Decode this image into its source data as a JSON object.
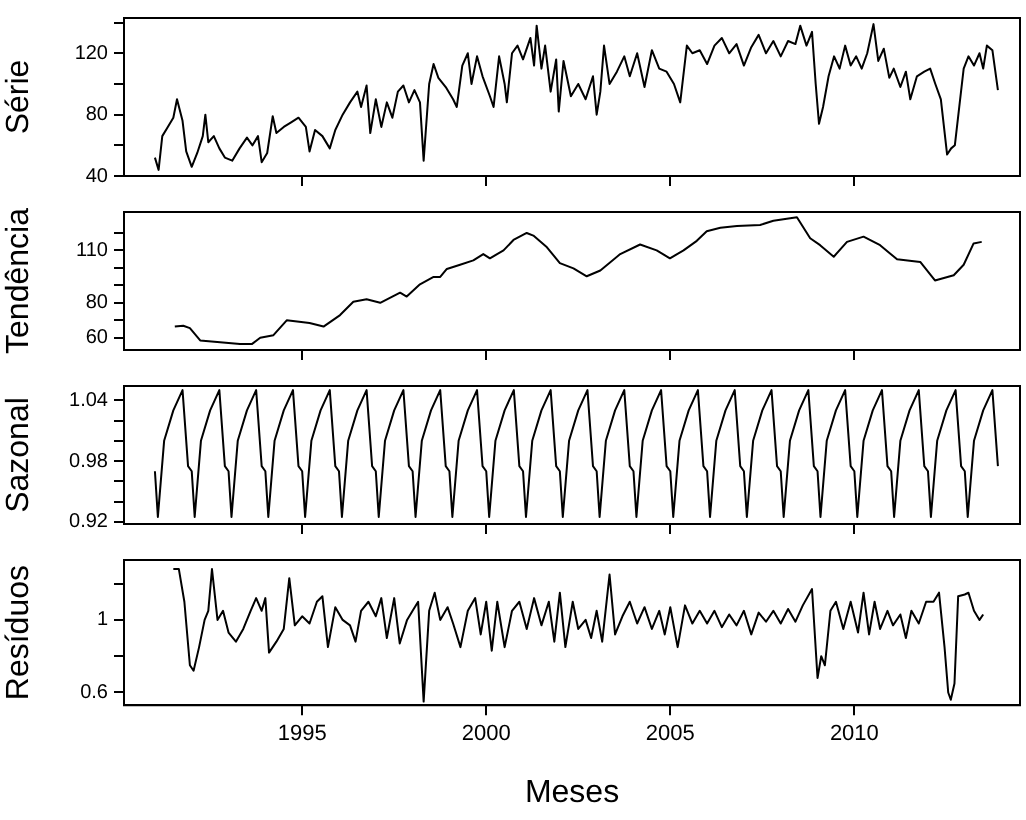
{
  "chart_data": [
    {
      "type": "line",
      "ylabel": "Série",
      "xlim": [
        1990.16,
        2014.5
      ],
      "xticks": [
        1995,
        2000,
        2005,
        2010
      ],
      "ylim": [
        40,
        143
      ],
      "yticks": [
        40,
        {
          "value": 60,
          "label": null
        },
        80,
        {
          "value": 100,
          "label": null
        },
        120,
        {
          "value": 140,
          "label": null
        }
      ],
      "tick_labels": "y",
      "series": [
        {
          "color": "#000000",
          "x": [
            1991.0,
            1991.1,
            1991.2,
            1991.35,
            1991.5,
            1991.6,
            1991.75,
            1991.85,
            1992.0,
            1992.15,
            1992.3,
            1992.37,
            1992.45,
            1992.6,
            1992.75,
            1992.9,
            1993.1,
            1993.3,
            1993.5,
            1993.65,
            1993.8,
            1993.9,
            1994.05,
            1994.2,
            1994.3,
            1994.5,
            1994.7,
            1994.9,
            1995.1,
            1995.2,
            1995.35,
            1995.55,
            1995.75,
            1995.9,
            1996.1,
            1996.3,
            1996.5,
            1996.6,
            1996.75,
            1996.85,
            1997.0,
            1997.15,
            1997.3,
            1997.45,
            1997.6,
            1997.75,
            1997.9,
            1998.05,
            1998.2,
            1998.3,
            1998.45,
            1998.57,
            1998.7,
            1998.9,
            1999.1,
            1999.2,
            1999.35,
            1999.5,
            1999.6,
            1999.75,
            1999.9,
            2000.1,
            2000.2,
            2000.35,
            2000.5,
            2000.56,
            2000.7,
            2000.85,
            2001.0,
            2001.2,
            2001.3,
            2001.37,
            2001.5,
            2001.6,
            2001.75,
            2001.9,
            2001.97,
            2002.1,
            2002.3,
            2002.5,
            2002.7,
            2002.9,
            2003.0,
            2003.1,
            2003.2,
            2003.35,
            2003.55,
            2003.75,
            2003.9,
            2004.1,
            2004.3,
            2004.5,
            2004.7,
            2004.9,
            2005.1,
            2005.27,
            2005.45,
            2005.6,
            2005.8,
            2006.0,
            2006.2,
            2006.4,
            2006.6,
            2006.8,
            2007.0,
            2007.2,
            2007.4,
            2007.6,
            2007.8,
            2008.0,
            2008.2,
            2008.4,
            2008.53,
            2008.7,
            2008.85,
            2008.95,
            2009.04,
            2009.15,
            2009.3,
            2009.45,
            2009.6,
            2009.75,
            2009.9,
            2010.05,
            2010.2,
            2010.35,
            2010.52,
            2010.65,
            2010.8,
            2010.95,
            2011.07,
            2011.25,
            2011.4,
            2011.52,
            2011.7,
            2011.9,
            2012.06,
            2012.2,
            2012.35,
            2012.52,
            2012.63,
            2012.73,
            2012.85,
            2012.97,
            2013.1,
            2013.25,
            2013.4,
            2013.5,
            2013.6,
            2013.75,
            2013.9
          ],
          "values": [
            52,
            44,
            66,
            72,
            78,
            90,
            76,
            56,
            46,
            55,
            66,
            80,
            62,
            66,
            58,
            52,
            50,
            58,
            65,
            60,
            66,
            49,
            55,
            79,
            68,
            72,
            75,
            78,
            72,
            56,
            70,
            66,
            58,
            70,
            80,
            88,
            95,
            85,
            99,
            68,
            90,
            72,
            88,
            78,
            95,
            99,
            88,
            96,
            88,
            50,
            100,
            113,
            104,
            98,
            90,
            85,
            112,
            120,
            100,
            118,
            105,
            92,
            85,
            118,
            100,
            88,
            120,
            125,
            116,
            130,
            112,
            138,
            110,
            125,
            95,
            116,
            82,
            115,
            92,
            100,
            90,
            105,
            80,
            95,
            125,
            100,
            108,
            118,
            105,
            120,
            98,
            122,
            110,
            108,
            100,
            88,
            125,
            120,
            122,
            113,
            125,
            130,
            120,
            126,
            112,
            124,
            132,
            120,
            128,
            118,
            128,
            126,
            138,
            125,
            134,
            100,
            74,
            85,
            105,
            118,
            110,
            125,
            112,
            118,
            110,
            120,
            139,
            115,
            123,
            104,
            110,
            98,
            108,
            90,
            105,
            108,
            110,
            100,
            90,
            54,
            58,
            60,
            85,
            110,
            118,
            112,
            120,
            110,
            125,
            122,
            96
          ]
        }
      ]
    },
    {
      "type": "line",
      "ylabel": "Tendência",
      "xlim": [
        1990.16,
        2014.5
      ],
      "xticks": [
        1995,
        2000,
        2005,
        2010
      ],
      "ylim": [
        53,
        132
      ],
      "yticks": [
        60,
        {
          "value": 70,
          "label": null
        },
        80,
        {
          "value": 90,
          "label": null
        },
        {
          "value": 100,
          "label": null
        },
        110,
        {
          "value": 120,
          "label": null
        }
      ],
      "tick_labels": "y",
      "series": [
        {
          "color": "#000000",
          "x": [
            1991.54,
            1991.77,
            1991.95,
            1992.23,
            1992.77,
            1993.31,
            1993.64,
            1993.86,
            1994.22,
            1994.58,
            1995.2,
            1995.58,
            1996.03,
            1996.39,
            1996.75,
            1997.12,
            1997.66,
            1997.84,
            1998.2,
            1998.57,
            1998.75,
            1998.93,
            1999.29,
            1999.65,
            1999.92,
            2000.1,
            2000.47,
            2000.74,
            2001.1,
            2001.28,
            2001.65,
            2002.0,
            2002.37,
            2002.73,
            2003.1,
            2003.64,
            2004.18,
            2004.63,
            2004.99,
            2005.36,
            2005.72,
            2005.99,
            2006.36,
            2006.81,
            2007.44,
            2007.8,
            2008.44,
            2008.8,
            2009.07,
            2009.44,
            2009.8,
            2010.25,
            2010.7,
            2011.16,
            2011.79,
            2012.19,
            2012.7,
            2012.97,
            2013.24,
            2013.46
          ],
          "values": [
            66.4,
            66.9,
            65.5,
            58.5,
            57.4,
            56.5,
            56.5,
            60,
            61.5,
            70,
            68.5,
            66.4,
            73,
            80.6,
            82,
            80,
            85.8,
            83.6,
            90.6,
            94.8,
            94.8,
            99.4,
            101.8,
            104.3,
            107.9,
            105.5,
            110,
            116,
            120,
            118.5,
            111.8,
            102.7,
            99.7,
            95.2,
            98.5,
            107.9,
            113.4,
            110,
            105.5,
            110,
            115.5,
            121,
            123,
            124,
            124.6,
            127,
            129,
            117,
            113,
            106.4,
            114.9,
            117.9,
            113,
            104.9,
            103.4,
            92.8,
            95.8,
            101.8,
            114,
            114.9
          ]
        }
      ]
    },
    {
      "type": "line",
      "ylabel": "Sazonal",
      "xlim": [
        1990.16,
        2014.5
      ],
      "xticks": [
        1995,
        2000,
        2005,
        2010
      ],
      "ylim": [
        0.918,
        1.054
      ],
      "yticks": [
        0.92,
        {
          "value": 0.94,
          "label": null
        },
        {
          "value": 0.96,
          "label": null
        },
        0.98,
        {
          "value": 1.0,
          "label": null
        },
        {
          "value": 1.02,
          "label": null
        },
        1.04
      ],
      "tick_labels": "y",
      "series": [
        {
          "color": "#000000",
          "x": [
            1991.0,
            1991.08,
            1991.25,
            1991.5,
            1991.75,
            1991.9,
            1992.0,
            1992.08,
            1992.25,
            1992.5,
            1992.75,
            1992.9,
            1993.0,
            1993.08,
            1993.25,
            1993.5,
            1993.75,
            1993.9,
            1994.0,
            1994.08,
            1994.25,
            1994.5,
            1994.75,
            1994.9,
            1995.0,
            1995.08,
            1995.25,
            1995.5,
            1995.75,
            1995.9,
            1996.0,
            1996.08,
            1996.25,
            1996.5,
            1996.75,
            1996.9,
            1997.0,
            1997.08,
            1997.25,
            1997.5,
            1997.75,
            1997.9,
            1998.0,
            1998.08,
            1998.25,
            1998.5,
            1998.75,
            1998.9,
            1999.0,
            1999.08,
            1999.25,
            1999.5,
            1999.75,
            1999.9,
            2000.0,
            2000.08,
            2000.25,
            2000.5,
            2000.75,
            2000.9,
            2001.0,
            2001.08,
            2001.25,
            2001.5,
            2001.75,
            2001.9,
            2002.0,
            2002.08,
            2002.25,
            2002.5,
            2002.75,
            2002.9,
            2003.0,
            2003.08,
            2003.25,
            2003.5,
            2003.75,
            2003.9,
            2004.0,
            2004.08,
            2004.25,
            2004.5,
            2004.75,
            2004.9,
            2005.0,
            2005.08,
            2005.25,
            2005.5,
            2005.75,
            2005.9,
            2006.0,
            2006.08,
            2006.25,
            2006.5,
            2006.75,
            2006.9,
            2007.0,
            2007.08,
            2007.25,
            2007.5,
            2007.75,
            2007.9,
            2008.0,
            2008.08,
            2008.25,
            2008.5,
            2008.75,
            2008.9,
            2009.0,
            2009.08,
            2009.25,
            2009.5,
            2009.75,
            2009.9,
            2010.0,
            2010.08,
            2010.25,
            2010.5,
            2010.75,
            2010.9,
            2011.0,
            2011.08,
            2011.25,
            2011.5,
            2011.75,
            2011.9,
            2012.0,
            2012.08,
            2012.25,
            2012.5,
            2012.75,
            2012.9,
            2013.0,
            2013.08,
            2013.25,
            2013.5,
            2013.75,
            2013.9
          ],
          "values": [
            0.97,
            0.925,
            1.0,
            1.03,
            1.05,
            0.975,
            0.97,
            0.925,
            1.0,
            1.03,
            1.05,
            0.975,
            0.97,
            0.925,
            1.0,
            1.03,
            1.05,
            0.975,
            0.97,
            0.925,
            1.0,
            1.03,
            1.05,
            0.975,
            0.97,
            0.925,
            1.0,
            1.03,
            1.05,
            0.975,
            0.97,
            0.925,
            1.0,
            1.03,
            1.05,
            0.975,
            0.97,
            0.925,
            1.0,
            1.03,
            1.05,
            0.975,
            0.97,
            0.925,
            1.0,
            1.03,
            1.05,
            0.975,
            0.97,
            0.925,
            1.0,
            1.03,
            1.05,
            0.975,
            0.97,
            0.925,
            1.0,
            1.03,
            1.05,
            0.975,
            0.97,
            0.925,
            1.0,
            1.03,
            1.05,
            0.975,
            0.97,
            0.925,
            1.0,
            1.03,
            1.05,
            0.975,
            0.97,
            0.925,
            1.0,
            1.03,
            1.05,
            0.975,
            0.97,
            0.925,
            1.0,
            1.03,
            1.05,
            0.975,
            0.97,
            0.925,
            1.0,
            1.03,
            1.05,
            0.975,
            0.97,
            0.925,
            1.0,
            1.03,
            1.05,
            0.975,
            0.97,
            0.925,
            1.0,
            1.03,
            1.05,
            0.975,
            0.97,
            0.925,
            1.0,
            1.03,
            1.05,
            0.975,
            0.97,
            0.925,
            1.0,
            1.03,
            1.05,
            0.975,
            0.97,
            0.925,
            1.0,
            1.03,
            1.05,
            0.975,
            0.97,
            0.925,
            1.0,
            1.03,
            1.05,
            0.975,
            0.97,
            0.925,
            1.0,
            1.03,
            1.05,
            0.975,
            0.97,
            0.925,
            1.0,
            1.03,
            1.05,
            0.975
          ]
        }
      ]
    },
    {
      "type": "line",
      "ylabel": "Resíduos",
      "xlabel": "Meses",
      "xlim": [
        1990.16,
        2014.5
      ],
      "xticks": [
        1995,
        2000,
        2005,
        2010
      ],
      "ylim": [
        0.53,
        1.33
      ],
      "yticks": [
        0.6,
        {
          "value": 0.8,
          "label": null
        },
        1.0,
        {
          "value": 1.2,
          "label": null
        }
      ],
      "series": [
        {
          "color": "#000000",
          "x": [
            1991.5,
            1991.65,
            1991.8,
            1991.95,
            1992.05,
            1992.2,
            1992.35,
            1992.45,
            1992.55,
            1992.7,
            1992.85,
            1993.0,
            1993.2,
            1993.4,
            1993.6,
            1993.75,
            1993.9,
            1994.0,
            1994.1,
            1994.3,
            1994.5,
            1994.65,
            1994.8,
            1995.0,
            1995.2,
            1995.4,
            1995.55,
            1995.7,
            1995.9,
            1996.1,
            1996.3,
            1996.45,
            1996.6,
            1996.8,
            1997.0,
            1997.15,
            1997.3,
            1997.5,
            1997.65,
            1997.85,
            1998.0,
            1998.15,
            1998.3,
            1998.45,
            1998.6,
            1998.75,
            1998.95,
            1999.1,
            1999.3,
            1999.5,
            1999.7,
            1999.85,
            2000.0,
            2000.15,
            2000.3,
            2000.5,
            2000.7,
            2000.9,
            2001.1,
            2001.3,
            2001.5,
            2001.7,
            2001.85,
            2002.0,
            2002.15,
            2002.35,
            2002.5,
            2002.7,
            2002.85,
            2003.0,
            2003.15,
            2003.35,
            2003.5,
            2003.7,
            2003.9,
            2004.1,
            2004.3,
            2004.5,
            2004.7,
            2004.85,
            2005.0,
            2005.2,
            2005.4,
            2005.6,
            2005.8,
            2006.0,
            2006.2,
            2006.4,
            2006.6,
            2006.8,
            2007.0,
            2007.2,
            2007.4,
            2007.6,
            2007.8,
            2008.0,
            2008.2,
            2008.4,
            2008.6,
            2008.85,
            2009.0,
            2009.1,
            2009.2,
            2009.35,
            2009.5,
            2009.7,
            2009.9,
            2010.1,
            2010.25,
            2010.4,
            2010.55,
            2010.7,
            2010.9,
            2011.05,
            2011.25,
            2011.4,
            2011.55,
            2011.75,
            2011.95,
            2012.15,
            2012.3,
            2012.45,
            2012.55,
            2012.62,
            2012.72,
            2012.82,
            2013.0,
            2013.1,
            2013.25,
            2013.4,
            2013.5
          ],
          "values": [
            1.28,
            1.28,
            1.1,
            0.75,
            0.72,
            0.85,
            1.0,
            1.05,
            1.28,
            1.0,
            1.05,
            0.93,
            0.88,
            0.95,
            1.05,
            1.12,
            1.05,
            1.12,
            0.82,
            0.88,
            0.95,
            1.23,
            0.97,
            1.02,
            0.98,
            1.1,
            1.13,
            0.85,
            1.07,
            1.0,
            0.97,
            0.88,
            1.05,
            1.1,
            1.02,
            1.12,
            0.9,
            1.12,
            0.87,
            1.0,
            1.05,
            1.1,
            0.55,
            1.05,
            1.15,
            1.0,
            1.07,
            0.98,
            0.85,
            1.05,
            1.12,
            0.92,
            1.1,
            0.83,
            1.1,
            0.85,
            1.05,
            1.1,
            0.95,
            1.12,
            0.97,
            1.1,
            0.88,
            1.15,
            0.85,
            1.1,
            0.95,
            1.0,
            0.9,
            1.05,
            0.88,
            1.25,
            0.92,
            1.02,
            1.1,
            0.98,
            1.07,
            0.95,
            1.05,
            0.92,
            1.07,
            0.85,
            1.08,
            0.98,
            1.05,
            0.98,
            1.05,
            0.96,
            1.03,
            0.97,
            1.05,
            0.92,
            1.04,
            0.99,
            1.05,
            0.98,
            1.06,
            0.99,
            1.08,
            1.17,
            0.68,
            0.8,
            0.75,
            1.05,
            1.1,
            0.95,
            1.1,
            0.93,
            1.15,
            0.92,
            1.1,
            0.95,
            1.05,
            0.97,
            1.03,
            0.9,
            1.05,
            0.98,
            1.1,
            1.1,
            1.15,
            0.85,
            0.6,
            0.56,
            0.65,
            1.13,
            1.14,
            1.15,
            1.05,
            1.0,
            1.03
          ]
        }
      ]
    }
  ]
}
